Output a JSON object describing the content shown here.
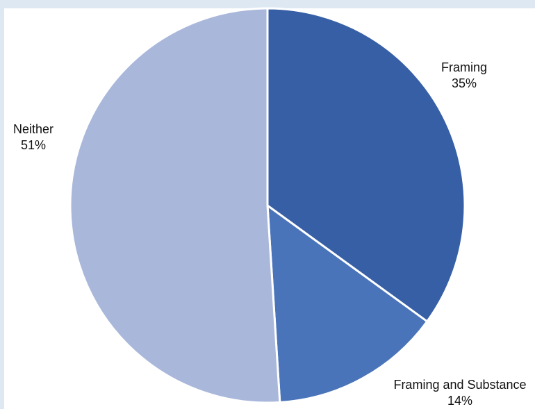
{
  "chart_data": {
    "type": "pie",
    "slices": [
      {
        "name": "Framing",
        "value": 35,
        "label": "35%",
        "color": "#375fa6"
      },
      {
        "name": "Framing and Substance",
        "value": 14,
        "label": "14%",
        "color": "#4a74ba"
      },
      {
        "name": "Neither",
        "value": 51,
        "label": "51%",
        "color": "#a9b7da"
      }
    ]
  }
}
